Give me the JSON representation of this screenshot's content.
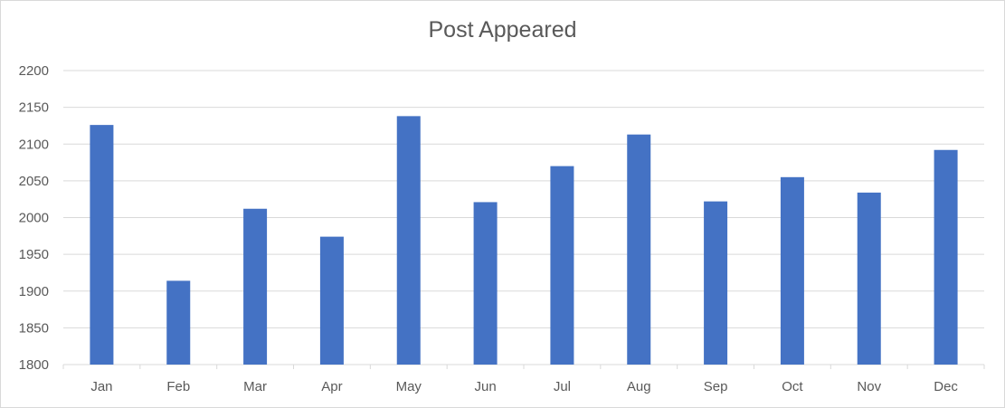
{
  "chart_data": {
    "type": "bar",
    "title": "Post Appeared",
    "xlabel": "",
    "ylabel": "",
    "categories": [
      "Jan",
      "Feb",
      "Mar",
      "Apr",
      "May",
      "Jun",
      "Jul",
      "Aug",
      "Sep",
      "Oct",
      "Nov",
      "Dec"
    ],
    "values": [
      2126,
      1914,
      2012,
      1974,
      2138,
      2021,
      2070,
      2113,
      2022,
      2055,
      2034,
      2092
    ],
    "ylim": [
      1800,
      2200
    ],
    "yticks": [
      "1800",
      "1850",
      "1900",
      "1950",
      "2000",
      "2050",
      "2100",
      "2150",
      "2200"
    ],
    "grid": true,
    "legend": "none",
    "bar_color": "#4472c4",
    "grid_color": "#d9d9d9"
  }
}
